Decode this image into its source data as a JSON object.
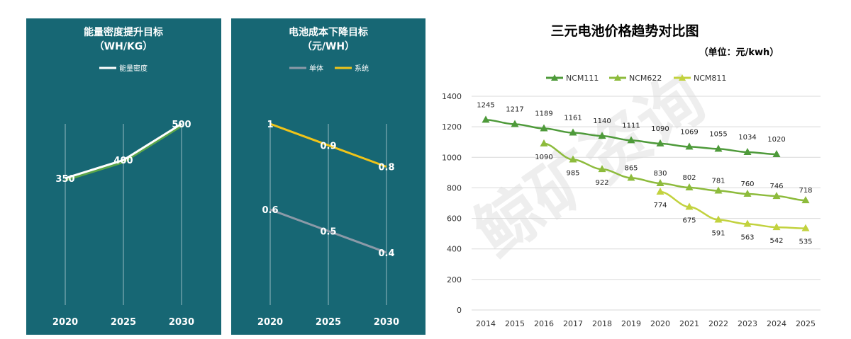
{
  "chart_data": [
    {
      "type": "line",
      "title": "能量密度提升目标",
      "subtitle": "（WH/KG）",
      "categories": [
        "2020",
        "2025",
        "2030"
      ],
      "series": [
        {
          "name": "能量密度",
          "values": [
            350,
            400,
            500
          ],
          "color": "#ffffff",
          "shadow_color": "#5ca64a"
        }
      ],
      "ylim": [
        0,
        520
      ],
      "legend": "top",
      "grid": false
    },
    {
      "type": "line",
      "title": "电池成本下降目标",
      "subtitle": "（元/WH）",
      "categories": [
        "2020",
        "2025",
        "2030"
      ],
      "series": [
        {
          "name": "单体",
          "values": [
            0.6,
            0.5,
            0.4
          ],
          "color": "#8c9aa8"
        },
        {
          "name": "系统",
          "values": [
            1,
            0.9,
            0.8
          ],
          "color": "#f0c419"
        }
      ],
      "ylim": [
        0,
        1.05
      ],
      "legend": "top",
      "grid": false
    },
    {
      "type": "line",
      "title": "三元电池价格趋势对比图",
      "unit_label": "（单位：元/kwh）",
      "x": [
        "2014",
        "2015",
        "2016",
        "2017",
        "2018",
        "2019",
        "2020",
        "2021",
        "2022",
        "2023",
        "2024",
        "2025"
      ],
      "yticks": [
        "0",
        "200",
        "400",
        "600",
        "800",
        "1000",
        "1200",
        "1400"
      ],
      "ylim": [
        0,
        1400
      ],
      "grid": true,
      "legend": "top",
      "series": [
        {
          "name": "NCM111",
          "color": "#4e9a3a",
          "values": [
            1245,
            1217,
            1189,
            1161,
            1140,
            1111,
            1090,
            1069,
            1055,
            1034,
            1020,
            null
          ]
        },
        {
          "name": "NCM622",
          "color": "#8dbb3c",
          "values": [
            null,
            null,
            1090,
            985,
            922,
            865,
            830,
            802,
            781,
            760,
            746,
            718
          ]
        },
        {
          "name": "NCM811",
          "color": "#c2d23e",
          "values": [
            null,
            null,
            null,
            null,
            null,
            null,
            774,
            675,
            591,
            563,
            542,
            535
          ]
        }
      ]
    }
  ],
  "watermark": "鲸矿资询"
}
